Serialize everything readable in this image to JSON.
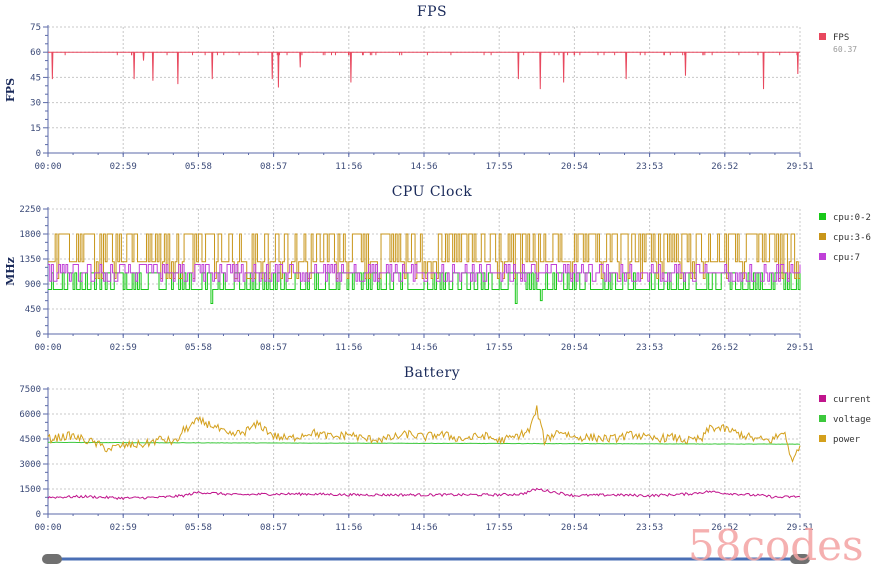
{
  "chart_data": [
    {
      "type": "line",
      "title": "FPS",
      "ylabel": "FPS",
      "xlabel": "",
      "ylim": [
        0,
        75
      ],
      "yticks": [
        0,
        15,
        30,
        45,
        60,
        75
      ],
      "yticks_minor": [
        5,
        10,
        20,
        25,
        35,
        40,
        50,
        55,
        65,
        70
      ],
      "x_ticks": [
        "00:00",
        "02:59",
        "05:58",
        "08:57",
        "11:56",
        "14:56",
        "17:55",
        "20:54",
        "23:53",
        "26:52",
        "29:51"
      ],
      "grid": true,
      "legend_position": "right",
      "series": [
        {
          "name": "FPS",
          "legend_value": "60.37",
          "color": "#e8485e",
          "baseline": 60,
          "dips_min_value": [
            [
              0.0058,
              44
            ],
            [
              0.1145,
              44
            ],
            [
              0.127,
              55
            ],
            [
              0.1395,
              43
            ],
            [
              0.1727,
              41
            ],
            [
              0.2184,
              44
            ],
            [
              0.2982,
              44
            ],
            [
              0.3064,
              39
            ],
            [
              0.3354,
              51
            ],
            [
              0.4028,
              42
            ],
            [
              0.6255,
              44
            ],
            [
              0.6546,
              38
            ],
            [
              0.6857,
              42
            ],
            [
              0.7688,
              44
            ],
            [
              0.8477,
              46
            ],
            [
              0.9515,
              38
            ],
            [
              0.9971,
              47
            ]
          ]
        }
      ]
    },
    {
      "type": "line",
      "title": "CPU Clock",
      "ylabel": "MHz",
      "xlabel": "",
      "ylim": [
        0,
        2250
      ],
      "yticks": [
        0,
        450,
        900,
        1350,
        1800,
        2250
      ],
      "yticks_minor": [
        150,
        300,
        600,
        750,
        1050,
        1200,
        1500,
        1650,
        1950,
        2100
      ],
      "x_ticks": [
        "00:00",
        "02:59",
        "05:58",
        "08:57",
        "11:56",
        "14:56",
        "17:55",
        "20:54",
        "23:53",
        "26:52",
        "29:51"
      ],
      "grid": true,
      "legend_position": "right",
      "series": [
        {
          "name": "cpu:0-2",
          "color": "#18c818",
          "base_value": 800,
          "high_value": 1100,
          "dips_min_value": [
            [
              0.216,
              550
            ],
            [
              0.622,
              550
            ],
            [
              0.654,
              600
            ]
          ]
        },
        {
          "name": "cpu:3-6",
          "color": "#c8961a",
          "base_value": 1300,
          "high_value": 1800,
          "low_value": 1000
        },
        {
          "name": "cpu:7",
          "color": "#c040d8",
          "base_value": 1100,
          "high_value": 1250,
          "low_value": 950
        }
      ]
    },
    {
      "type": "line",
      "title": "Battery",
      "ylabel": "",
      "xlabel": "",
      "ylim": [
        0,
        7500
      ],
      "yticks": [
        0,
        1500,
        3000,
        4500,
        6000,
        7500
      ],
      "yticks_minor": [
        500,
        1000,
        2000,
        2500,
        3500,
        4000,
        5000,
        5500,
        6500,
        7000
      ],
      "x_ticks": [
        "00:00",
        "02:59",
        "05:58",
        "08:57",
        "11:56",
        "14:56",
        "17:55",
        "20:54",
        "23:53",
        "26:52",
        "29:51"
      ],
      "grid": true,
      "legend_position": "right",
      "series": [
        {
          "name": "current",
          "color": "#c0148c",
          "x": [
            0,
            0.05,
            0.1,
            0.15,
            0.18,
            0.2,
            0.22,
            0.25,
            0.3,
            0.35,
            0.4,
            0.45,
            0.5,
            0.55,
            0.6,
            0.63,
            0.65,
            0.7,
            0.75,
            0.8,
            0.85,
            0.88,
            0.9,
            0.95,
            0.97,
            1.0
          ],
          "y": [
            1000,
            1050,
            950,
            1000,
            1100,
            1300,
            1250,
            1150,
            1200,
            1200,
            1150,
            1150,
            1150,
            1150,
            1150,
            1200,
            1500,
            1100,
            1150,
            1100,
            1200,
            1350,
            1250,
            1100,
            1000,
            1050
          ]
        },
        {
          "name": "voltage",
          "color": "#3cc83c",
          "x": [
            0,
            0.1,
            0.3,
            0.5,
            0.7,
            0.9,
            1.0
          ],
          "y": [
            4300,
            4280,
            4260,
            4240,
            4220,
            4200,
            4190
          ]
        },
        {
          "name": "power",
          "color": "#d4a01c",
          "x": [
            0,
            0.03,
            0.06,
            0.08,
            0.1,
            0.13,
            0.15,
            0.17,
            0.18,
            0.2,
            0.22,
            0.24,
            0.26,
            0.28,
            0.3,
            0.32,
            0.35,
            0.38,
            0.4,
            0.42,
            0.45,
            0.48,
            0.5,
            0.52,
            0.55,
            0.58,
            0.6,
            0.62,
            0.64,
            0.65,
            0.66,
            0.68,
            0.7,
            0.72,
            0.75,
            0.78,
            0.8,
            0.83,
            0.85,
            0.87,
            0.88,
            0.9,
            0.92,
            0.94,
            0.96,
            0.98,
            0.99,
            1.0
          ],
          "y": [
            4500,
            4700,
            4300,
            3900,
            4100,
            4200,
            4500,
            4300,
            5000,
            5600,
            5300,
            4700,
            4900,
            5400,
            4700,
            4500,
            4900,
            4600,
            4800,
            4500,
            4500,
            4800,
            4600,
            4800,
            4500,
            4700,
            4400,
            4600,
            5000,
            6300,
            4400,
            5000,
            4600,
            4600,
            4500,
            4800,
            4500,
            4600,
            4400,
            4500,
            5200,
            5100,
            4800,
            4500,
            4400,
            4900,
            3000,
            4300
          ]
        }
      ]
    }
  ],
  "watermark": "58codes",
  "colors": {
    "axis": "#5b6aa8",
    "grid": "#c8c8c8",
    "slider_track": "#4a6fb5",
    "slider_handle": "#707070"
  }
}
